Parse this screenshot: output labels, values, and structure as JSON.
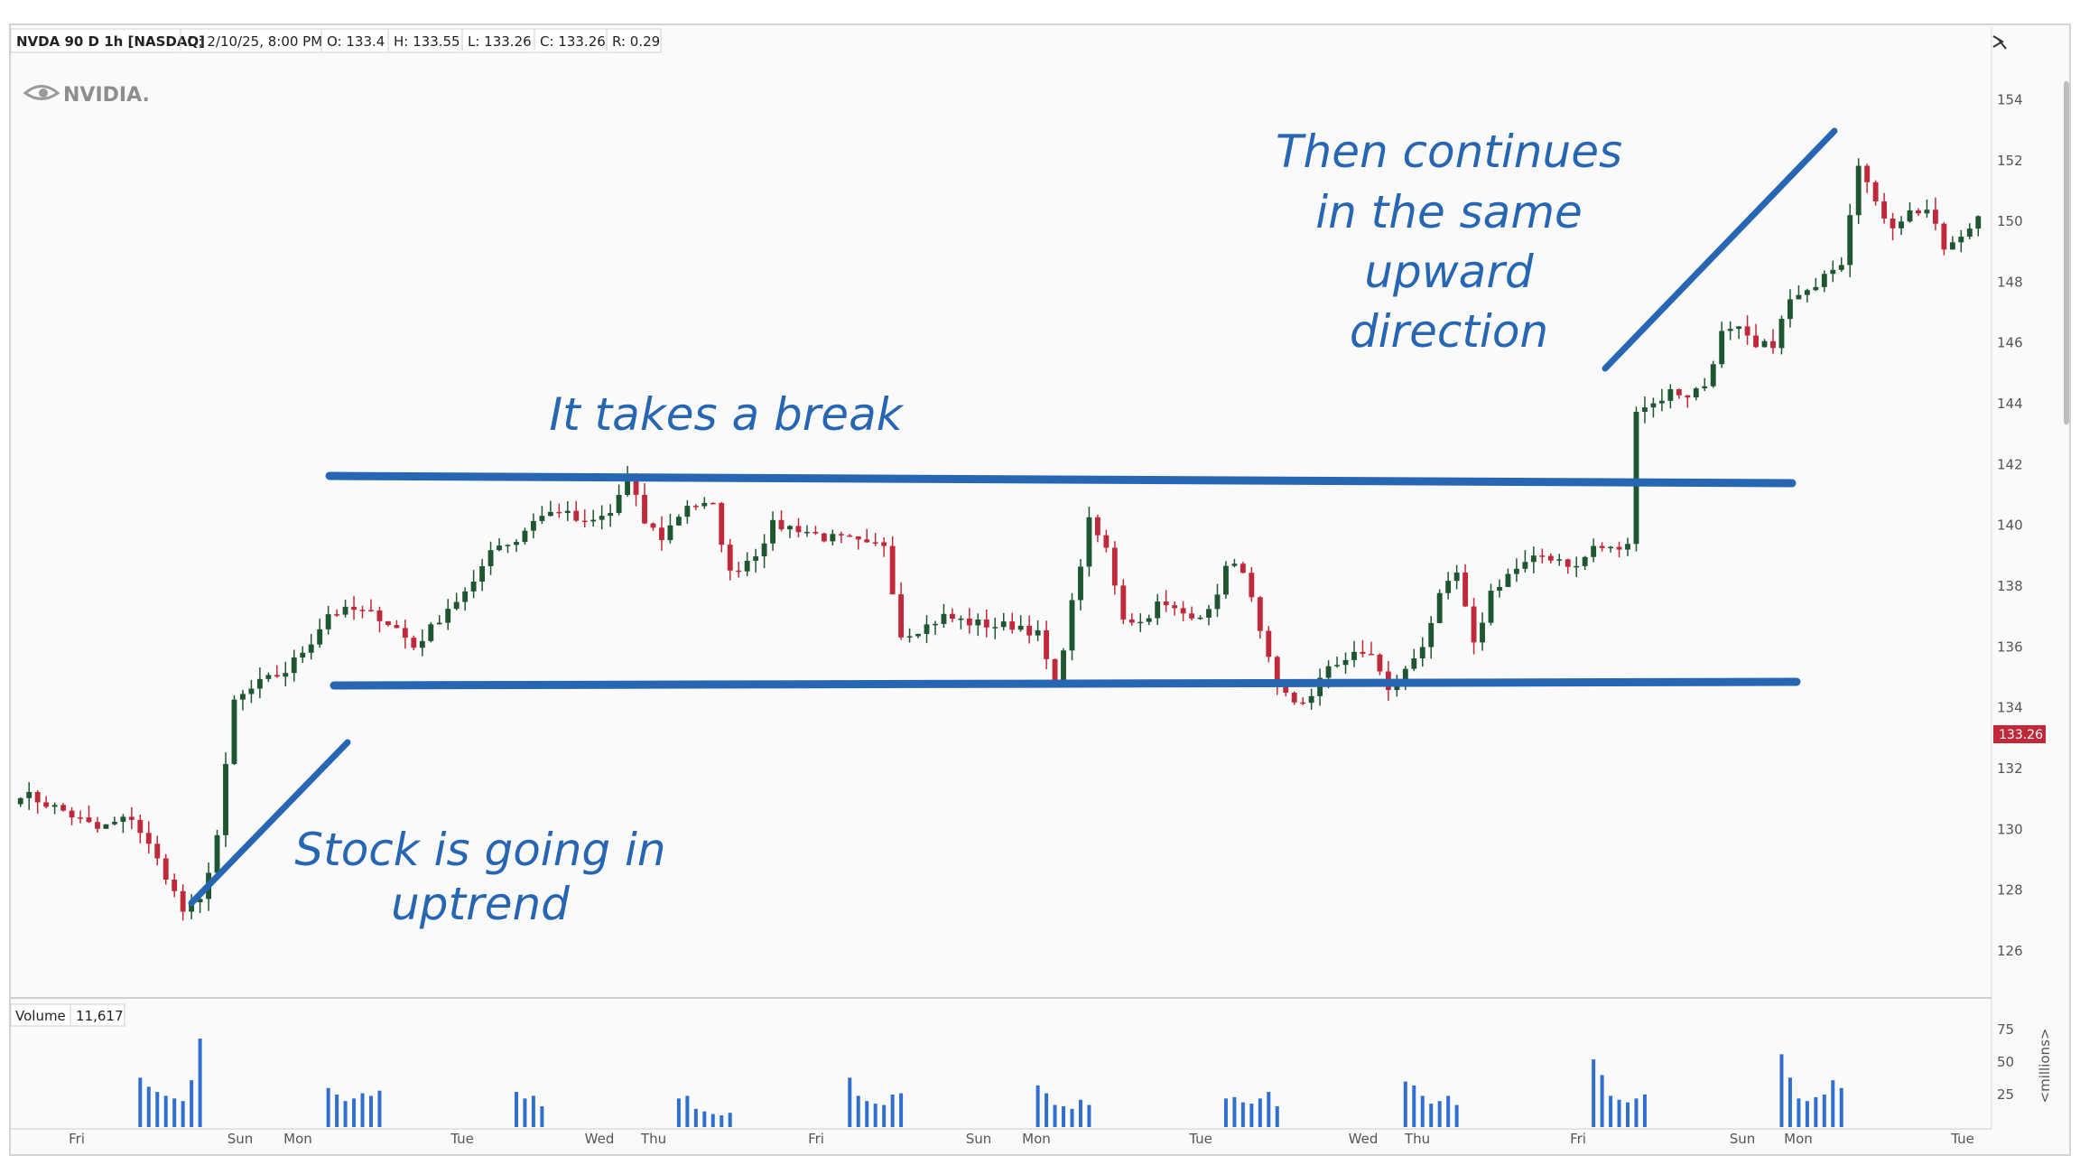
{
  "header": {
    "symbol": "NVDA 90 D 1h [NASDAQ]",
    "date": "D: 2/10/25, 8:00 PM",
    "open": "O: 133.4",
    "high": "H: 133.55",
    "low": "L: 133.26",
    "close": "C: 133.26",
    "range": "R: 0.29"
  },
  "logo_text": "NVIDIA.",
  "colors": {
    "up": "#1e5631",
    "down": "#c0293a",
    "volume": "#2f6fcf",
    "annotation": "#2766b3",
    "last_price": "#c0293a"
  },
  "volume_panel": {
    "label": "Volume",
    "value": "11,617",
    "unit": "<millions>",
    "ticks": [
      "75",
      "50",
      "25"
    ]
  },
  "last_price_label": "133.26",
  "annotations": [
    {
      "lines": [
        "Then continues",
        "in the same",
        "upward",
        "direction"
      ]
    },
    {
      "lines": [
        "It takes a break"
      ]
    },
    {
      "lines": [
        "Stock is going in",
        "uptrend"
      ]
    }
  ],
  "chart_data": {
    "type": "candlestick",
    "title": "NVDA 90 D 1h [NASDAQ]",
    "y_ticks": [
      "154",
      "152",
      "150",
      "148",
      "146",
      "144",
      "142",
      "140",
      "138",
      "136",
      "134",
      "132",
      "130",
      "128",
      "126"
    ],
    "ylim": [
      124.6,
      155.5
    ],
    "x_ticks": [
      "Fri",
      "Sun",
      "Mon",
      "Tue",
      "Wed",
      "Thu",
      "Fri",
      "Sun",
      "Mon",
      "Tue",
      "Wed",
      "Thu",
      "Fri",
      "Sun",
      "Mon",
      "Tue"
    ],
    "price_path": [
      [
        0,
        131.2
      ],
      [
        5,
        130.6
      ],
      [
        9,
        130.0
      ],
      [
        13,
        130.4
      ],
      [
        17,
        128.5
      ],
      [
        19,
        127.3
      ],
      [
        21,
        127.6
      ],
      [
        23,
        129.8
      ],
      [
        25,
        134.2
      ],
      [
        28,
        134.8
      ],
      [
        31,
        135.2
      ],
      [
        34,
        136.2
      ],
      [
        36,
        137.1
      ],
      [
        39,
        137.2
      ],
      [
        42,
        137.0
      ],
      [
        44,
        136.6
      ],
      [
        46,
        136.0
      ],
      [
        48,
        136.6
      ],
      [
        50,
        137.3
      ],
      [
        53,
        138.0
      ],
      [
        55,
        139.3
      ],
      [
        58,
        139.5
      ],
      [
        60,
        140.2
      ],
      [
        63,
        140.5
      ],
      [
        66,
        140.0
      ],
      [
        69,
        140.4
      ],
      [
        71,
        141.6
      ],
      [
        73,
        140.1
      ],
      [
        75,
        139.6
      ],
      [
        78,
        140.7
      ],
      [
        81,
        140.6
      ],
      [
        83,
        138.4
      ],
      [
        86,
        139.1
      ],
      [
        88,
        140.0
      ],
      [
        91,
        139.9
      ],
      [
        94,
        139.6
      ],
      [
        97,
        139.5
      ],
      [
        99,
        139.3
      ],
      [
        101,
        139.4
      ],
      [
        103,
        136.4
      ],
      [
        106,
        136.7
      ],
      [
        108,
        137.0
      ],
      [
        111,
        136.8
      ],
      [
        114,
        136.7
      ],
      [
        117,
        136.7
      ],
      [
        119,
        136.4
      ],
      [
        121,
        134.7
      ],
      [
        123,
        137.4
      ],
      [
        125,
        140.1
      ],
      [
        127,
        139.2
      ],
      [
        129,
        137.0
      ],
      [
        131,
        136.8
      ],
      [
        133,
        137.4
      ],
      [
        136,
        137.1
      ],
      [
        139,
        137.1
      ],
      [
        141,
        138.6
      ],
      [
        143,
        138.6
      ],
      [
        145,
        136.4
      ],
      [
        147,
        134.6
      ],
      [
        149,
        134.2
      ],
      [
        151,
        134.3
      ],
      [
        153,
        135.4
      ],
      [
        156,
        135.7
      ],
      [
        158,
        135.8
      ],
      [
        160,
        134.5
      ],
      [
        162,
        135.2
      ],
      [
        164,
        136.1
      ],
      [
        166,
        137.6
      ],
      [
        168,
        138.4
      ],
      [
        170,
        136.0
      ],
      [
        172,
        137.8
      ],
      [
        174,
        138.4
      ],
      [
        176,
        138.7
      ],
      [
        178,
        139.0
      ],
      [
        180,
        138.9
      ],
      [
        182,
        138.6
      ],
      [
        184,
        139.3
      ],
      [
        186,
        139.2
      ],
      [
        188,
        139.3
      ],
      [
        189,
        143.9
      ],
      [
        191,
        144.0
      ],
      [
        193,
        144.4
      ],
      [
        195,
        144.3
      ],
      [
        197,
        144.6
      ],
      [
        199,
        146.3
      ],
      [
        201,
        146.4
      ],
      [
        203,
        145.8
      ],
      [
        205,
        146.0
      ],
      [
        207,
        147.4
      ],
      [
        209,
        147.6
      ],
      [
        211,
        148.4
      ],
      [
        213,
        148.7
      ],
      [
        215,
        152.0
      ],
      [
        217,
        150.5
      ],
      [
        219,
        149.9
      ],
      [
        221,
        150.3
      ],
      [
        223,
        150.4
      ],
      [
        225,
        149.1
      ],
      [
        227,
        149.4
      ],
      [
        229,
        150.2
      ]
    ],
    "volume_bursts": [
      {
        "start": 14,
        "values": [
          38,
          31,
          27,
          24,
          22,
          20,
          36,
          68
        ]
      },
      {
        "start": 36,
        "values": [
          30,
          25,
          20,
          22,
          26,
          24,
          28
        ]
      },
      {
        "start": 58,
        "values": [
          27,
          22,
          24,
          16
        ]
      },
      {
        "start": 77,
        "values": [
          22,
          24,
          14,
          12,
          10,
          9,
          11
        ]
      },
      {
        "start": 97,
        "values": [
          38,
          24,
          20,
          18,
          17,
          25,
          26
        ]
      },
      {
        "start": 119,
        "values": [
          32,
          26,
          17,
          16,
          14,
          21,
          17
        ]
      },
      {
        "start": 141,
        "values": [
          22,
          23,
          19,
          18,
          22,
          27,
          16
        ]
      },
      {
        "start": 162,
        "values": [
          35,
          32,
          24,
          18,
          20,
          24,
          17
        ]
      },
      {
        "start": 184,
        "values": [
          52,
          40,
          24,
          21,
          19,
          22,
          25
        ]
      },
      {
        "start": 206,
        "values": [
          56,
          38,
          22,
          20,
          23,
          25,
          36,
          30
        ]
      }
    ],
    "volume_ylim": [
      0,
      75
    ]
  }
}
